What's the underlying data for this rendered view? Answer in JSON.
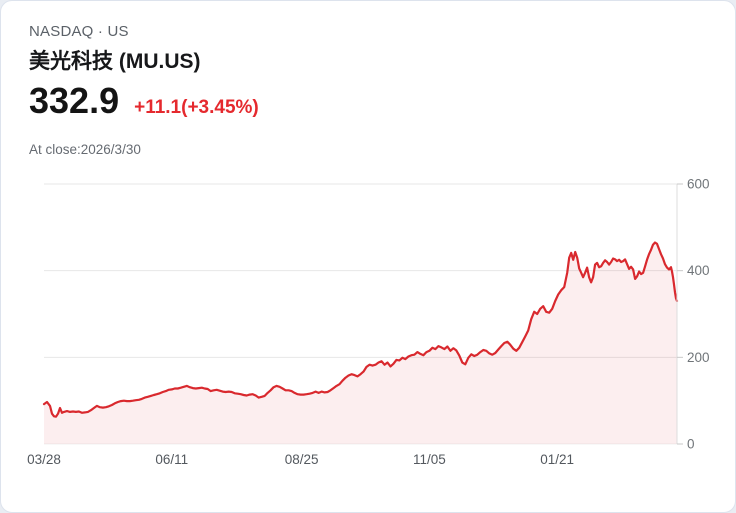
{
  "header": {
    "exchange": "NASDAQ · US",
    "title": "美光科技 (MU.US)",
    "price": "332.9",
    "change": "+11.1(+3.45%)",
    "as_of": "At close:2026/3/30"
  },
  "colors": {
    "up_red": "#e5292e",
    "line_red": "#d9292e",
    "area_fill": "rgba(217,41,46,0.08)",
    "grid": "#e7e7e7",
    "axis_line": "#dcdcdc",
    "tick": "#c9c9c9",
    "y_label": "#707579",
    "x_label": "#53585e"
  },
  "chart_data": {
    "type": "area",
    "title": "",
    "xlabel": "",
    "ylabel": "",
    "legend_position": "none",
    "grid": true,
    "y_axis_side": "right",
    "ylim": [
      0,
      600
    ],
    "y_ticks": [
      0,
      200,
      400,
      600
    ],
    "x_span": 634,
    "x_ticks": [
      {
        "label": "03/28",
        "o": 0
      },
      {
        "label": "06/11",
        "o": 128
      },
      {
        "label": "08/25",
        "o": 258
      },
      {
        "label": "11/05",
        "o": 386
      },
      {
        "label": "01/21",
        "o": 514
      }
    ],
    "series": [
      {
        "name": "close-price",
        "points": [
          [
            0,
            92
          ],
          [
            3,
            97
          ],
          [
            6,
            88
          ],
          [
            8,
            70
          ],
          [
            10,
            64
          ],
          [
            12,
            63
          ],
          [
            14,
            70
          ],
          [
            16,
            83
          ],
          [
            18,
            72
          ],
          [
            20,
            74
          ],
          [
            23,
            76
          ],
          [
            26,
            74
          ],
          [
            29,
            75
          ],
          [
            32,
            74
          ],
          [
            35,
            75
          ],
          [
            38,
            72
          ],
          [
            41,
            73
          ],
          [
            44,
            74
          ],
          [
            47,
            78
          ],
          [
            50,
            83
          ],
          [
            53,
            88
          ],
          [
            56,
            85
          ],
          [
            59,
            84
          ],
          [
            62,
            85
          ],
          [
            65,
            87
          ],
          [
            68,
            90
          ],
          [
            71,
            94
          ],
          [
            74,
            97
          ],
          [
            77,
            99
          ],
          [
            80,
            100
          ],
          [
            83,
            99
          ],
          [
            86,
            99
          ],
          [
            89,
            100
          ],
          [
            92,
            101
          ],
          [
            95,
            102
          ],
          [
            98,
            104
          ],
          [
            101,
            107
          ],
          [
            104,
            109
          ],
          [
            107,
            111
          ],
          [
            110,
            113
          ],
          [
            113,
            115
          ],
          [
            116,
            117
          ],
          [
            119,
            120
          ],
          [
            122,
            122
          ],
          [
            125,
            125
          ],
          [
            128,
            126
          ],
          [
            131,
            128
          ],
          [
            134,
            128
          ],
          [
            137,
            130
          ],
          [
            140,
            132
          ],
          [
            143,
            134
          ],
          [
            146,
            131
          ],
          [
            149,
            129
          ],
          [
            152,
            128
          ],
          [
            155,
            129
          ],
          [
            158,
            130
          ],
          [
            161,
            128
          ],
          [
            164,
            127
          ],
          [
            167,
            122
          ],
          [
            170,
            124
          ],
          [
            173,
            125
          ],
          [
            176,
            123
          ],
          [
            179,
            121
          ],
          [
            182,
            120
          ],
          [
            185,
            121
          ],
          [
            188,
            120
          ],
          [
            191,
            117
          ],
          [
            194,
            116
          ],
          [
            197,
            115
          ],
          [
            200,
            113
          ],
          [
            203,
            112
          ],
          [
            206,
            114
          ],
          [
            209,
            115
          ],
          [
            212,
            112
          ],
          [
            215,
            107
          ],
          [
            218,
            109
          ],
          [
            221,
            111
          ],
          [
            224,
            118
          ],
          [
            227,
            124
          ],
          [
            230,
            131
          ],
          [
            233,
            134
          ],
          [
            236,
            132
          ],
          [
            239,
            128
          ],
          [
            242,
            124
          ],
          [
            245,
            124
          ],
          [
            248,
            122
          ],
          [
            251,
            118
          ],
          [
            254,
            115
          ],
          [
            257,
            114
          ],
          [
            260,
            114
          ],
          [
            263,
            115
          ],
          [
            266,
            116
          ],
          [
            269,
            118
          ],
          [
            272,
            121
          ],
          [
            275,
            118
          ],
          [
            278,
            121
          ],
          [
            281,
            119
          ],
          [
            284,
            120
          ],
          [
            287,
            124
          ],
          [
            290,
            129
          ],
          [
            293,
            134
          ],
          [
            296,
            138
          ],
          [
            299,
            146
          ],
          [
            302,
            153
          ],
          [
            305,
            158
          ],
          [
            308,
            161
          ],
          [
            311,
            159
          ],
          [
            314,
            156
          ],
          [
            317,
            161
          ],
          [
            320,
            167
          ],
          [
            323,
            178
          ],
          [
            326,
            183
          ],
          [
            329,
            181
          ],
          [
            332,
            183
          ],
          [
            335,
            188
          ],
          [
            338,
            191
          ],
          [
            341,
            183
          ],
          [
            344,
            188
          ],
          [
            347,
            179
          ],
          [
            350,
            185
          ],
          [
            353,
            194
          ],
          [
            356,
            193
          ],
          [
            359,
            199
          ],
          [
            362,
            196
          ],
          [
            365,
            202
          ],
          [
            368,
            205
          ],
          [
            371,
            206
          ],
          [
            374,
            212
          ],
          [
            377,
            208
          ],
          [
            380,
            205
          ],
          [
            383,
            212
          ],
          [
            386,
            215
          ],
          [
            389,
            222
          ],
          [
            392,
            219
          ],
          [
            395,
            226
          ],
          [
            398,
            223
          ],
          [
            401,
            219
          ],
          [
            404,
            225
          ],
          [
            407,
            215
          ],
          [
            410,
            221
          ],
          [
            413,
            216
          ],
          [
            416,
            204
          ],
          [
            419,
            188
          ],
          [
            422,
            184
          ],
          [
            425,
            199
          ],
          [
            428,
            207
          ],
          [
            431,
            203
          ],
          [
            434,
            206
          ],
          [
            437,
            212
          ],
          [
            440,
            217
          ],
          [
            443,
            215
          ],
          [
            446,
            209
          ],
          [
            449,
            206
          ],
          [
            452,
            210
          ],
          [
            455,
            218
          ],
          [
            458,
            226
          ],
          [
            461,
            233
          ],
          [
            464,
            236
          ],
          [
            467,
            229
          ],
          [
            470,
            220
          ],
          [
            473,
            215
          ],
          [
            476,
            222
          ],
          [
            479,
            235
          ],
          [
            482,
            248
          ],
          [
            485,
            262
          ],
          [
            488,
            288
          ],
          [
            491,
            305
          ],
          [
            494,
            300
          ],
          [
            497,
            312
          ],
          [
            500,
            318
          ],
          [
            503,
            305
          ],
          [
            506,
            303
          ],
          [
            509,
            312
          ],
          [
            512,
            330
          ],
          [
            515,
            345
          ],
          [
            518,
            355
          ],
          [
            521,
            362
          ],
          [
            524,
            395
          ],
          [
            526,
            430
          ],
          [
            528,
            441
          ],
          [
            530,
            425
          ],
          [
            532,
            443
          ],
          [
            534,
            430
          ],
          [
            536,
            405
          ],
          [
            538,
            395
          ],
          [
            540,
            385
          ],
          [
            542,
            395
          ],
          [
            544,
            407
          ],
          [
            546,
            385
          ],
          [
            548,
            373
          ],
          [
            550,
            385
          ],
          [
            552,
            414
          ],
          [
            554,
            418
          ],
          [
            556,
            408
          ],
          [
            558,
            410
          ],
          [
            560,
            418
          ],
          [
            562,
            424
          ],
          [
            564,
            420
          ],
          [
            566,
            414
          ],
          [
            568,
            420
          ],
          [
            570,
            428
          ],
          [
            572,
            426
          ],
          [
            574,
            422
          ],
          [
            576,
            425
          ],
          [
            578,
            420
          ],
          [
            580,
            422
          ],
          [
            582,
            426
          ],
          [
            584,
            415
          ],
          [
            586,
            404
          ],
          [
            588,
            409
          ],
          [
            590,
            403
          ],
          [
            592,
            381
          ],
          [
            594,
            387
          ],
          [
            596,
            398
          ],
          [
            598,
            392
          ],
          [
            600,
            395
          ],
          [
            602,
            410
          ],
          [
            604,
            425
          ],
          [
            606,
            438
          ],
          [
            608,
            448
          ],
          [
            610,
            460
          ],
          [
            612,
            465
          ],
          [
            614,
            462
          ],
          [
            616,
            450
          ],
          [
            618,
            438
          ],
          [
            620,
            428
          ],
          [
            622,
            415
          ],
          [
            624,
            407
          ],
          [
            626,
            403
          ],
          [
            628,
            408
          ],
          [
            629,
            398
          ],
          [
            630,
            385
          ],
          [
            631,
            368
          ],
          [
            632,
            350
          ],
          [
            633,
            336
          ],
          [
            634,
            330
          ]
        ]
      }
    ]
  }
}
